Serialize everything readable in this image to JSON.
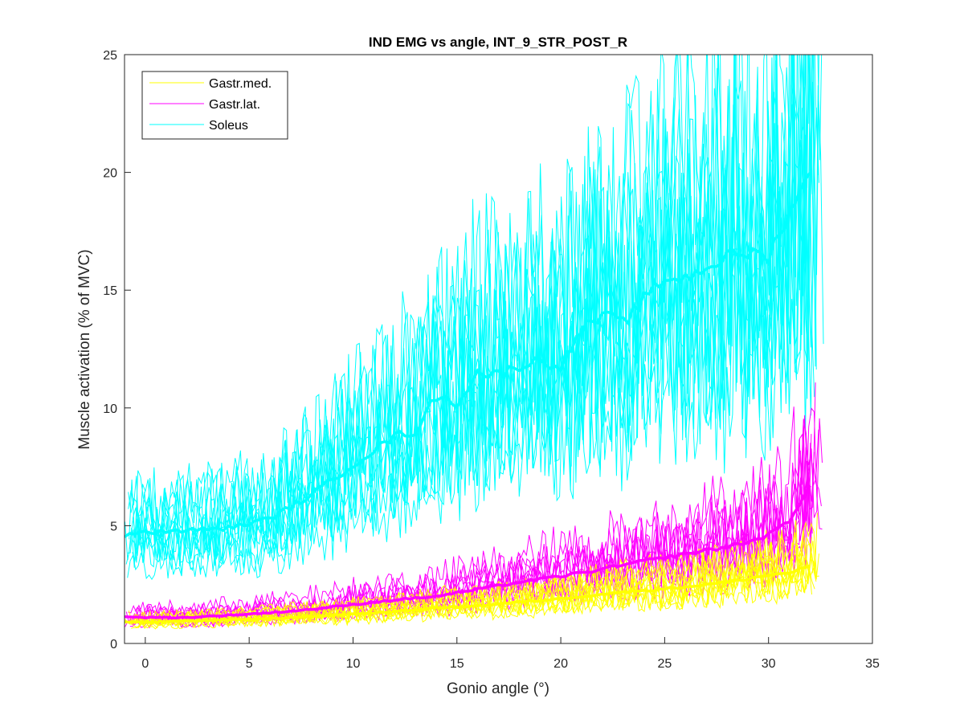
{
  "chart_data": {
    "type": "line",
    "title": "IND EMG vs angle, INT_9_STR_POST_R",
    "xlabel": "Gonio angle (°)",
    "ylabel": "Muscle activation (% of MVC)",
    "xlim": [
      -1,
      35
    ],
    "ylim": [
      0,
      25
    ],
    "xticks": [
      0,
      5,
      10,
      15,
      20,
      25,
      30,
      35
    ],
    "yticks": [
      0,
      5,
      10,
      15,
      20,
      25
    ],
    "grid": false,
    "legend_position": "top-left",
    "legend": [
      "Gastr.med.",
      "Gastr.lat.",
      "Soleus"
    ],
    "series": [
      {
        "name": "Gastr.med.",
        "color": "#FFFF00",
        "mean_x": [
          -1,
          0,
          2,
          4,
          6,
          8,
          10,
          12,
          14,
          16,
          18,
          20,
          22,
          24,
          26,
          28,
          30,
          31,
          32
        ],
        "mean_y": [
          0.9,
          0.9,
          0.95,
          1.0,
          1.05,
          1.15,
          1.25,
          1.35,
          1.5,
          1.6,
          1.75,
          1.9,
          2.1,
          2.25,
          2.4,
          2.6,
          2.9,
          3.0,
          3.3
        ]
      },
      {
        "name": "Gastr.lat.",
        "color": "#FF00FF",
        "mean_x": [
          -1,
          0,
          2,
          4,
          6,
          8,
          10,
          12,
          14,
          16,
          18,
          20,
          22,
          24,
          26,
          28,
          29,
          30,
          31,
          32
        ],
        "mean_y": [
          1.15,
          1.1,
          1.1,
          1.2,
          1.3,
          1.45,
          1.65,
          1.85,
          2.0,
          2.3,
          2.6,
          2.85,
          3.15,
          3.5,
          3.8,
          4.1,
          4.3,
          4.6,
          5.2,
          6.8
        ]
      },
      {
        "name": "Soleus",
        "color": "#00FFFF",
        "mean_x": [
          -1,
          0,
          2,
          4,
          6,
          8,
          10,
          12,
          13,
          14,
          15,
          16,
          17,
          18,
          19,
          20,
          21,
          22,
          23,
          24,
          25,
          26,
          27,
          28,
          29,
          30,
          31,
          32
        ],
        "mean_y": [
          4.6,
          4.7,
          4.8,
          4.9,
          5.3,
          6.3,
          7.6,
          8.8,
          9.0,
          10.5,
          10.2,
          11.5,
          11.4,
          11.8,
          12.0,
          11.8,
          13.3,
          13.9,
          13.6,
          14.6,
          15.5,
          15.5,
          16.0,
          16.4,
          16.6,
          16.4,
          18.4,
          19.8
        ]
      }
    ]
  }
}
